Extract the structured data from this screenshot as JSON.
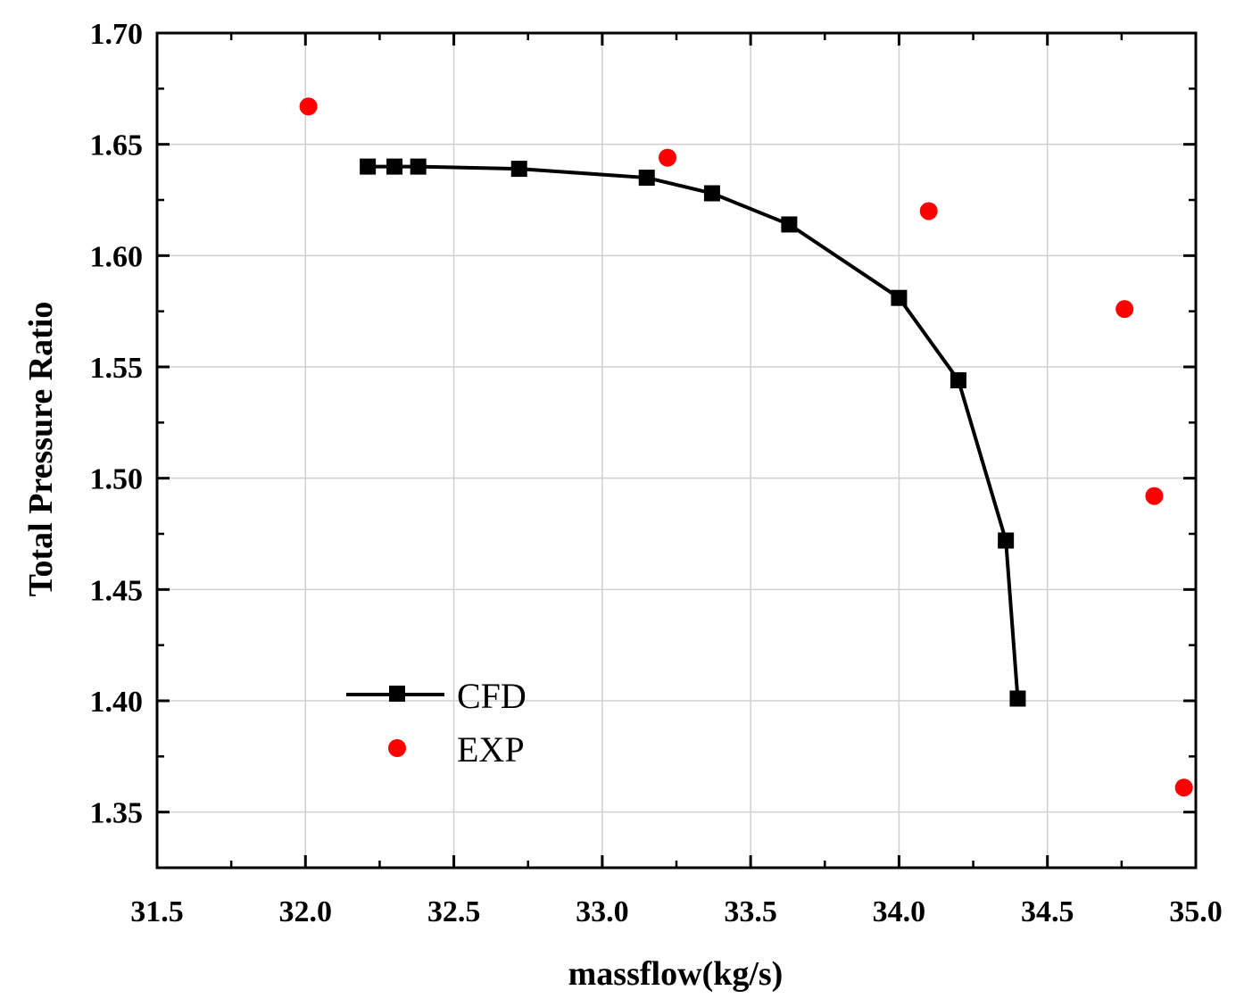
{
  "chart_data": {
    "type": "line",
    "title": "",
    "xlabel": "massflow(kg/s)",
    "ylabel": "Total Pressure Ratio",
    "xlim": [
      31.5,
      35.0
    ],
    "ylim": [
      1.325,
      1.7
    ],
    "xticks": [
      31.5,
      32.0,
      32.5,
      33.0,
      33.5,
      34.0,
      34.5,
      35.0
    ],
    "xtick_labels": [
      "31.5",
      "32.0",
      "32.5",
      "33.0",
      "33.5",
      "34.0",
      "34.5",
      "35.0"
    ],
    "yticks": [
      1.35,
      1.4,
      1.45,
      1.5,
      1.55,
      1.6,
      1.65,
      1.7
    ],
    "ytick_labels": [
      "1.35",
      "1.40",
      "1.45",
      "1.50",
      "1.55",
      "1.60",
      "1.65",
      "1.70"
    ],
    "grid": true,
    "legend_position": "lower-left",
    "series": [
      {
        "name": "CFD",
        "style": "line-square",
        "color": "#000000",
        "x": [
          32.21,
          32.3,
          32.38,
          32.72,
          33.15,
          33.37,
          33.63,
          34.0,
          34.2,
          34.36,
          34.4
        ],
        "y": [
          1.64,
          1.64,
          1.64,
          1.639,
          1.635,
          1.628,
          1.614,
          1.581,
          1.544,
          1.472,
          1.401
        ]
      },
      {
        "name": "EXP",
        "style": "scatter-circle",
        "color": "#ff0000",
        "x": [
          32.01,
          33.22,
          34.1,
          34.76,
          34.86,
          34.96
        ],
        "y": [
          1.667,
          1.644,
          1.62,
          1.576,
          1.492,
          1.361
        ]
      }
    ]
  }
}
